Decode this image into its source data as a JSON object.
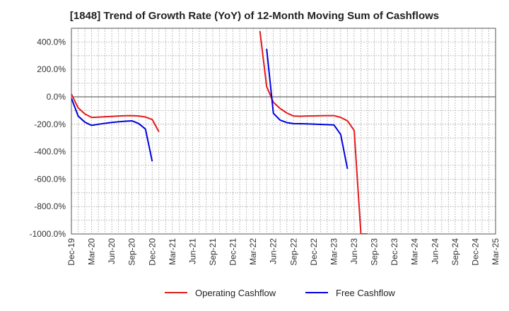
{
  "chart_data": {
    "type": "line",
    "title": "[1848]  Trend of Growth Rate (YoY) of 12-Month Moving Sum of Cashflows",
    "xlabel": "",
    "ylabel": "",
    "ylim": [
      -1000,
      500
    ],
    "yticks": [
      400,
      200,
      0,
      -200,
      -400,
      -600,
      -800,
      -1000
    ],
    "ytick_labels": [
      "400.0%",
      "200.0%",
      "0.0%",
      "-200.0%",
      "-400.0%",
      "-600.0%",
      "-800.0%",
      "-1000.0%"
    ],
    "xtick_labels": [
      "Dec-19",
      "Mar-20",
      "Jun-20",
      "Sep-20",
      "Dec-20",
      "Mar-21",
      "Jun-21",
      "Sep-21",
      "Dec-21",
      "Mar-22",
      "Jun-22",
      "Sep-22",
      "Dec-22",
      "Mar-23",
      "Jun-23",
      "Sep-23",
      "Dec-23",
      "Mar-24",
      "Jun-24",
      "Sep-24",
      "Dec-24",
      "Mar-25"
    ],
    "x_months": [
      "Dec-19",
      "Jan-20",
      "Feb-20",
      "Mar-20",
      "Apr-20",
      "May-20",
      "Jun-20",
      "Jul-20",
      "Aug-20",
      "Sep-20",
      "Oct-20",
      "Nov-20",
      "Dec-20",
      "Jan-21",
      "Feb-21",
      "Mar-21",
      "Apr-21",
      "May-21",
      "Jun-21",
      "Jul-21",
      "Aug-21",
      "Sep-21",
      "Oct-21",
      "Nov-21",
      "Dec-21",
      "Jan-22",
      "Feb-22",
      "Mar-22",
      "Apr-22",
      "May-22",
      "Jun-22",
      "Jul-22",
      "Aug-22",
      "Sep-22",
      "Oct-22",
      "Nov-22",
      "Dec-22",
      "Jan-23",
      "Feb-23",
      "Mar-23",
      "Apr-23",
      "May-23",
      "Jun-23",
      "Jul-23",
      "Aug-23",
      "Sep-23",
      "Oct-23",
      "Nov-23",
      "Dec-23",
      "Jan-24",
      "Feb-24",
      "Mar-24",
      "Apr-24",
      "May-24",
      "Jun-24",
      "Jul-24",
      "Aug-24",
      "Sep-24",
      "Oct-24",
      "Nov-24",
      "Dec-24",
      "Jan-25",
      "Feb-25",
      "Mar-25"
    ],
    "series": [
      {
        "name": "Operating Cashflow",
        "color": "#e31a1c",
        "segments": [
          {
            "x": [
              "Dec-19",
              "Jan-20",
              "Feb-20",
              "Mar-20",
              "Apr-20",
              "May-20",
              "Jun-20",
              "Jul-20",
              "Aug-20",
              "Sep-20",
              "Oct-20",
              "Nov-20",
              "Dec-20",
              "Jan-21"
            ],
            "y": [
              20,
              -80,
              -125,
              -150,
              -148,
              -145,
              -143,
              -140,
              -138,
              -137,
              -140,
              -147,
              -165,
              -255
            ]
          },
          {
            "x": [
              "Apr-22",
              "May-22",
              "Jun-22",
              "Jul-22",
              "Aug-22",
              "Sep-22",
              "Oct-22",
              "Nov-22",
              "Dec-22",
              "Jan-23",
              "Feb-23",
              "Mar-23",
              "Apr-23",
              "May-23",
              "Jun-23",
              "Jul-23",
              "Aug-23"
            ],
            "y": [
              480,
              75,
              -40,
              -85,
              -118,
              -140,
              -142,
              -140,
              -139,
              -138,
              -137,
              -137,
              -150,
              -175,
              -245,
              -1000,
              -1000
            ]
          }
        ]
      },
      {
        "name": "Free Cashflow",
        "color": "#0000dd",
        "segments": [
          {
            "x": [
              "Dec-19",
              "Jan-20",
              "Feb-20",
              "Mar-20",
              "Apr-20",
              "May-20",
              "Jun-20",
              "Jul-20",
              "Aug-20",
              "Sep-20",
              "Oct-20",
              "Nov-20",
              "Dec-20"
            ],
            "y": [
              -10,
              -140,
              -185,
              -208,
              -200,
              -193,
              -187,
              -182,
              -178,
              -175,
              -195,
              -235,
              -470
            ]
          },
          {
            "x": [
              "May-22",
              "Jun-22",
              "Jul-22",
              "Aug-22",
              "Sep-22",
              "Oct-22",
              "Nov-22",
              "Dec-22",
              "Jan-23",
              "Feb-23",
              "Mar-23",
              "Apr-23",
              "May-23"
            ],
            "y": [
              350,
              -120,
              -170,
              -188,
              -195,
              -196,
              -197,
              -199,
              -201,
              -203,
              -205,
              -275,
              -525
            ]
          }
        ]
      }
    ],
    "legend": "bottom",
    "grid": true
  }
}
